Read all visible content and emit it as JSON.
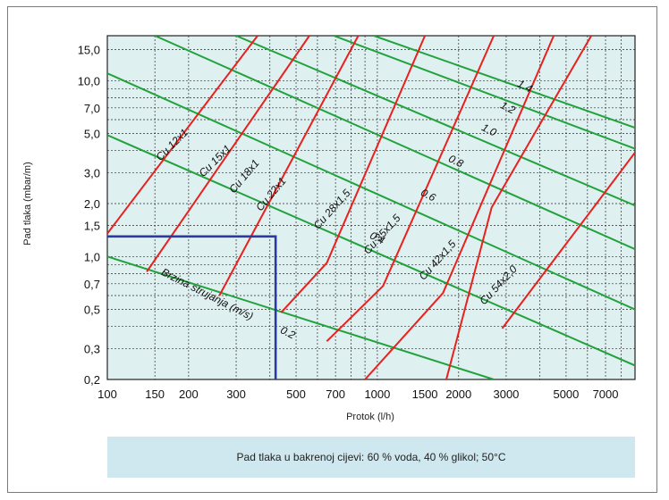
{
  "chart_data": {
    "type": "line",
    "title": "",
    "xlabel": "Protok (l/h)",
    "ylabel": "Pad tlaka (mbar/m)",
    "x_scale": "log",
    "y_scale": "log",
    "xlim": [
      100,
      9000
    ],
    "ylim": [
      0.2,
      18
    ],
    "grid": true,
    "x_ticks": [
      100,
      150,
      200,
      300,
      500,
      700,
      1000,
      1500,
      2000,
      3000,
      5000,
      7000
    ],
    "x_tick_labels": [
      "100",
      "150",
      "200",
      "300",
      "500",
      "700",
      "1000",
      "1500",
      "2000",
      "3000",
      "5000",
      "7000"
    ],
    "y_ticks": [
      0.2,
      0.3,
      0.5,
      0.7,
      1.0,
      1.5,
      2.0,
      3.0,
      5.0,
      7.0,
      10.0,
      15.0
    ],
    "y_tick_labels": [
      "0,2",
      "0,3",
      "0,5",
      "0,7",
      "1,0",
      "1,5",
      "2,0",
      "3,0",
      "5,0",
      "7,0",
      "10,0",
      "15,0"
    ],
    "pipe_series": [
      {
        "name": "Cu 12x1",
        "color": "#e8201e",
        "points": [
          [
            100,
            1.35
          ],
          [
            360,
            18
          ]
        ]
      },
      {
        "name": "Cu 15x1",
        "color": "#e8201e",
        "points": [
          [
            140,
            0.82
          ],
          [
            560,
            18
          ]
        ]
      },
      {
        "name": "Cu 18x1",
        "color": "#e8201e",
        "points": [
          [
            260,
            0.6
          ],
          [
            850,
            18
          ]
        ]
      },
      {
        "name": "Cu 22x1",
        "color": "#e8201e",
        "points": [
          [
            440,
            0.48
          ],
          [
            650,
            0.92
          ],
          [
            1500,
            18
          ]
        ]
      },
      {
        "name": "Cu 28x1,5",
        "color": "#e8201e",
        "points": [
          [
            650,
            0.33
          ],
          [
            1050,
            0.68
          ],
          [
            2700,
            18
          ]
        ]
      },
      {
        "name": "Cu 35x1,5",
        "color": "#e8201e",
        "points": [
          [
            900,
            0.2
          ],
          [
            1750,
            0.62
          ],
          [
            4500,
            18
          ]
        ]
      },
      {
        "name": "Cu 42x1,5",
        "color": "#e8201e",
        "points": [
          [
            1800,
            0.2
          ],
          [
            2650,
            1.9
          ],
          [
            6200,
            18
          ]
        ]
      },
      {
        "name": "Cu 54x2,0",
        "color": "#e8201e",
        "points": [
          [
            2900,
            0.39
          ],
          [
            9000,
            3.9
          ]
        ]
      }
    ],
    "velocity_series": [
      {
        "name": "0.2",
        "color": "#21a23d",
        "points": [
          [
            100,
            1.0
          ],
          [
            2700,
            0.2
          ]
        ]
      },
      {
        "name": "0.4",
        "color": "#21a23d",
        "points": [
          [
            100,
            4.9
          ],
          [
            9000,
            0.24
          ]
        ]
      },
      {
        "name": "0.6",
        "color": "#21a23d",
        "points": [
          [
            100,
            11.0
          ],
          [
            9000,
            0.5
          ]
        ]
      },
      {
        "name": "0.8",
        "color": "#21a23d",
        "points": [
          [
            150,
            18
          ],
          [
            9000,
            1.1
          ]
        ]
      },
      {
        "name": "1.0",
        "color": "#21a23d",
        "points": [
          [
            300,
            18
          ],
          [
            9000,
            1.95
          ]
        ]
      },
      {
        "name": "1.2",
        "color": "#21a23d",
        "points": [
          [
            690,
            18
          ],
          [
            9000,
            4.1
          ]
        ]
      },
      {
        "name": "1.4",
        "color": "#21a23d",
        "points": [
          [
            970,
            18
          ],
          [
            9000,
            5.4
          ]
        ]
      }
    ],
    "annotation_label": "Brzina strujanja (m/s)",
    "example_reading": {
      "x": 420,
      "y": 1.3,
      "color": "#2b3a9e"
    }
  },
  "caption": "Pad tlaka u bakrenoj cijevi: 60 % voda, 40 % glikol; 50°C",
  "colors": {
    "plot_bg": "#dff0f0",
    "grid": "#2c2c2c",
    "pipe": "#e8201e",
    "velocity": "#21a23d",
    "reading": "#2b3a9e",
    "caption_bg": "#cfe7ee"
  }
}
